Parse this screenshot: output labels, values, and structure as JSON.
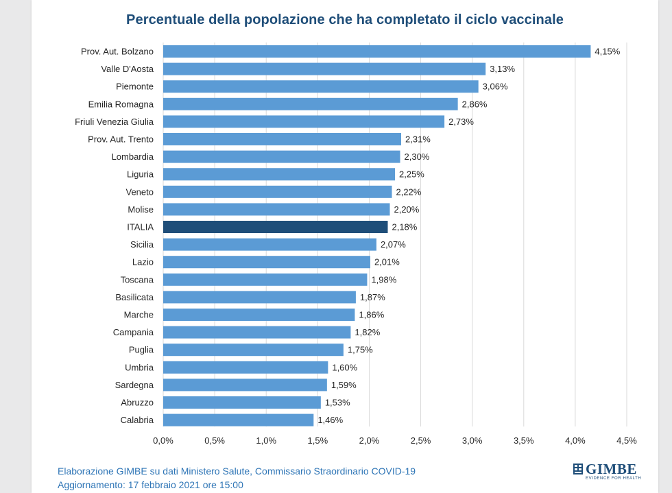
{
  "chart_data": {
    "type": "bar",
    "orientation": "horizontal",
    "title": "Percentuale della popolazione che ha completato il ciclo vaccinale",
    "categories": [
      "Prov. Aut. Bolzano",
      "Valle D'Aosta",
      "Piemonte",
      "Emilia Romagna",
      "Friuli Venezia Giulia",
      "Prov. Aut. Trento",
      "Lombardia",
      "Liguria",
      "Veneto",
      "Molise",
      "ITALIA",
      "Sicilia",
      "Lazio",
      "Toscana",
      "Basilicata",
      "Marche",
      "Campania",
      "Puglia",
      "Umbria",
      "Sardegna",
      "Abruzzo",
      "Calabria"
    ],
    "values": [
      4.15,
      3.13,
      3.06,
      2.86,
      2.73,
      2.31,
      2.3,
      2.25,
      2.22,
      2.2,
      2.18,
      2.07,
      2.01,
      1.98,
      1.87,
      1.86,
      1.82,
      1.75,
      1.6,
      1.59,
      1.53,
      1.46
    ],
    "value_labels": [
      "4,15%",
      "3,13%",
      "3,06%",
      "2,86%",
      "2,73%",
      "2,31%",
      "2,30%",
      "2,25%",
      "2,22%",
      "2,20%",
      "2,18%",
      "2,07%",
      "2,01%",
      "1,98%",
      "1,87%",
      "1,86%",
      "1,82%",
      "1,75%",
      "1,60%",
      "1,59%",
      "1,53%",
      "1,46%"
    ],
    "highlight": "ITALIA",
    "xlim": [
      0,
      4.5
    ],
    "x_ticks": [
      0,
      0.5,
      1.0,
      1.5,
      2.0,
      2.5,
      3.0,
      3.5,
      4.0,
      4.5
    ],
    "x_tick_labels": [
      "0,0%",
      "0,5%",
      "1,0%",
      "1,5%",
      "2,0%",
      "2,5%",
      "3,0%",
      "3,5%",
      "4,0%",
      "4,5%"
    ],
    "grid": "vertical",
    "xlabel": "",
    "ylabel": "",
    "colors": {
      "bar": "#5b9bd5",
      "highlight": "#1f4e79",
      "grid": "#d9d9d9"
    }
  },
  "footer": {
    "line1": "Elaborazione GIMBE su dati Ministero Salute, Commissario Straordinario COVID-19",
    "line2": "Aggiornamento: 17 febbraio 2021 ore 15:00"
  },
  "logo": {
    "text": "GIMBE",
    "tagline": "EVIDENCE FOR HEALTH",
    "icon": "gimbe-logo-icon",
    "color": "#1f4e79"
  }
}
